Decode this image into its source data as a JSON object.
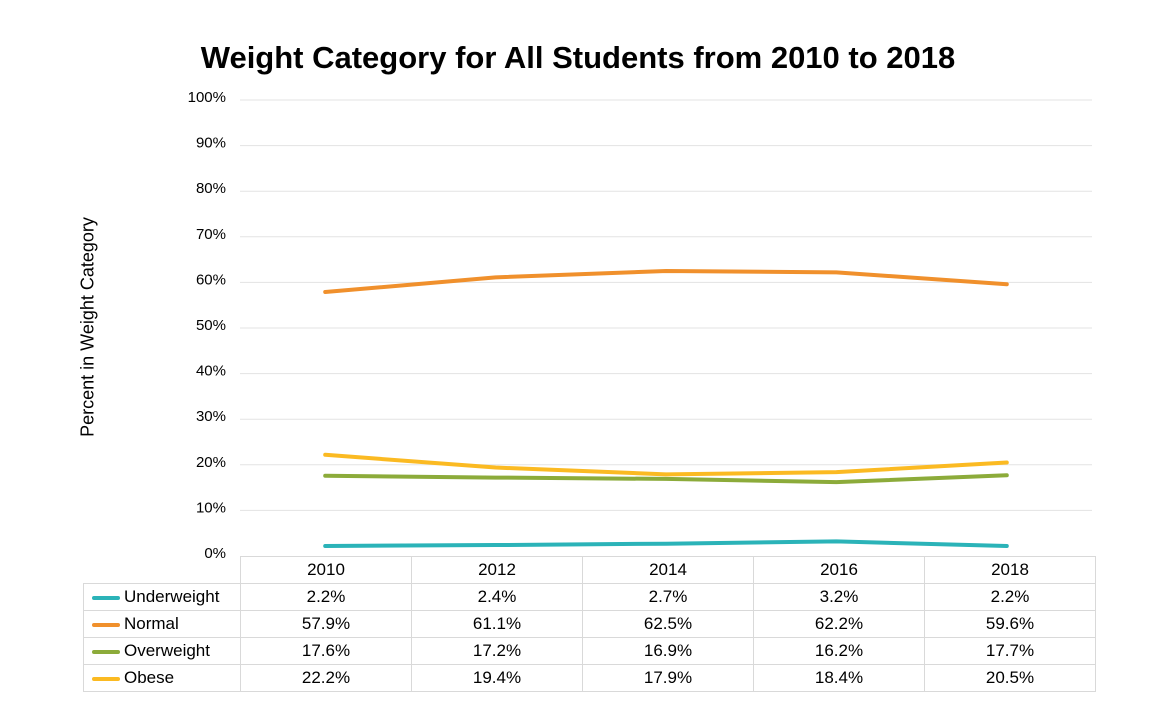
{
  "chart_data": {
    "type": "line",
    "title": "Weight Category for All Students from 2010 to 2018",
    "xlabel": "",
    "ylabel": "Percent in Weight Category",
    "x": [
      "2010",
      "2012",
      "2014",
      "2016",
      "2018"
    ],
    "yticks": [
      "0%",
      "10%",
      "20%",
      "30%",
      "40%",
      "50%",
      "60%",
      "70%",
      "80%",
      "90%",
      "100%"
    ],
    "ylim": [
      0,
      100
    ],
    "grid": true,
    "legend": "data-table",
    "series": [
      {
        "name": "Underweight",
        "color": "#2bb3b8",
        "values": [
          2.2,
          2.4,
          2.7,
          3.2,
          2.2
        ],
        "labels": [
          "2.2%",
          "2.4%",
          "2.7%",
          "3.2%",
          "2.2%"
        ]
      },
      {
        "name": "Normal",
        "color": "#f0902c",
        "values": [
          57.9,
          61.1,
          62.5,
          62.2,
          59.6
        ],
        "labels": [
          "57.9%",
          "61.1%",
          "62.5%",
          "62.2%",
          "59.6%"
        ]
      },
      {
        "name": "Overweight",
        "color": "#8cab3a",
        "values": [
          17.6,
          17.2,
          16.9,
          16.2,
          17.7
        ],
        "labels": [
          "17.6%",
          "17.2%",
          "16.9%",
          "16.2%",
          "17.7%"
        ]
      },
      {
        "name": "Obese",
        "color": "#fbba22",
        "values": [
          22.2,
          19.4,
          17.9,
          18.4,
          20.5
        ],
        "labels": [
          "22.2%",
          "19.4%",
          "17.9%",
          "18.4%",
          "20.5%"
        ]
      }
    ]
  }
}
